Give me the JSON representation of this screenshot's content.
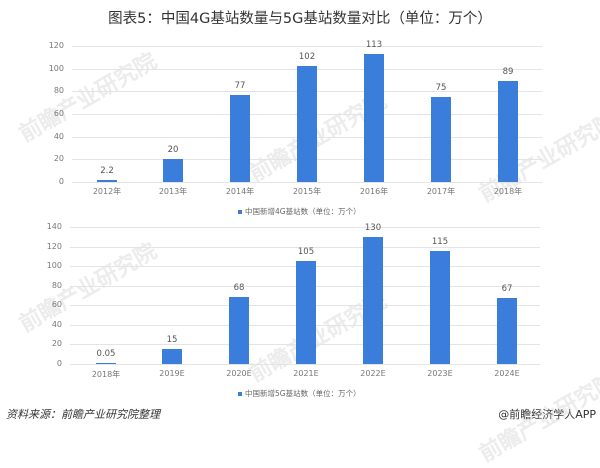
{
  "title": "图表5：中国4G基站数量与5G基站数量对比（单位：万个）",
  "colors": {
    "bar": "#3a7ddb",
    "grid": "#e4e4e4"
  },
  "watermark": "前瞻产业研究院",
  "footer": {
    "source": "资料来源：前瞻产业研究院整理",
    "credit": "@前瞻经济学人APP"
  },
  "chart_data": [
    {
      "type": "bar",
      "title": "",
      "categories": [
        "2012年",
        "2013年",
        "2014年",
        "2015年",
        "2016年",
        "2017年",
        "2018年"
      ],
      "values": [
        2.2,
        20,
        77,
        102,
        113,
        75,
        89
      ],
      "value_labels": [
        "2.2",
        "20",
        "77",
        "102",
        "113",
        "75",
        "89"
      ],
      "yticks": [
        "0",
        "20",
        "40",
        "60",
        "80",
        "100",
        "120"
      ],
      "ylim": [
        0,
        120
      ],
      "grid": true,
      "legend": "中国新增4G基站数（单位：万个）",
      "legend_position": "bottom",
      "xlabel": "",
      "ylabel": ""
    },
    {
      "type": "bar",
      "title": "",
      "categories": [
        "2018年",
        "2019E",
        "2020E",
        "2021E",
        "2022E",
        "2023E",
        "2024E"
      ],
      "values": [
        0.05,
        15,
        68,
        105,
        130,
        115,
        67
      ],
      "value_labels": [
        "0.05",
        "15",
        "68",
        "105",
        "130",
        "115",
        "67"
      ],
      "yticks": [
        "0",
        "20",
        "40",
        "60",
        "80",
        "100",
        "120",
        "140"
      ],
      "ylim": [
        0,
        140
      ],
      "grid": true,
      "legend": "中国新增5G基站数（单位：万个）",
      "legend_position": "bottom",
      "xlabel": "",
      "ylabel": ""
    }
  ]
}
